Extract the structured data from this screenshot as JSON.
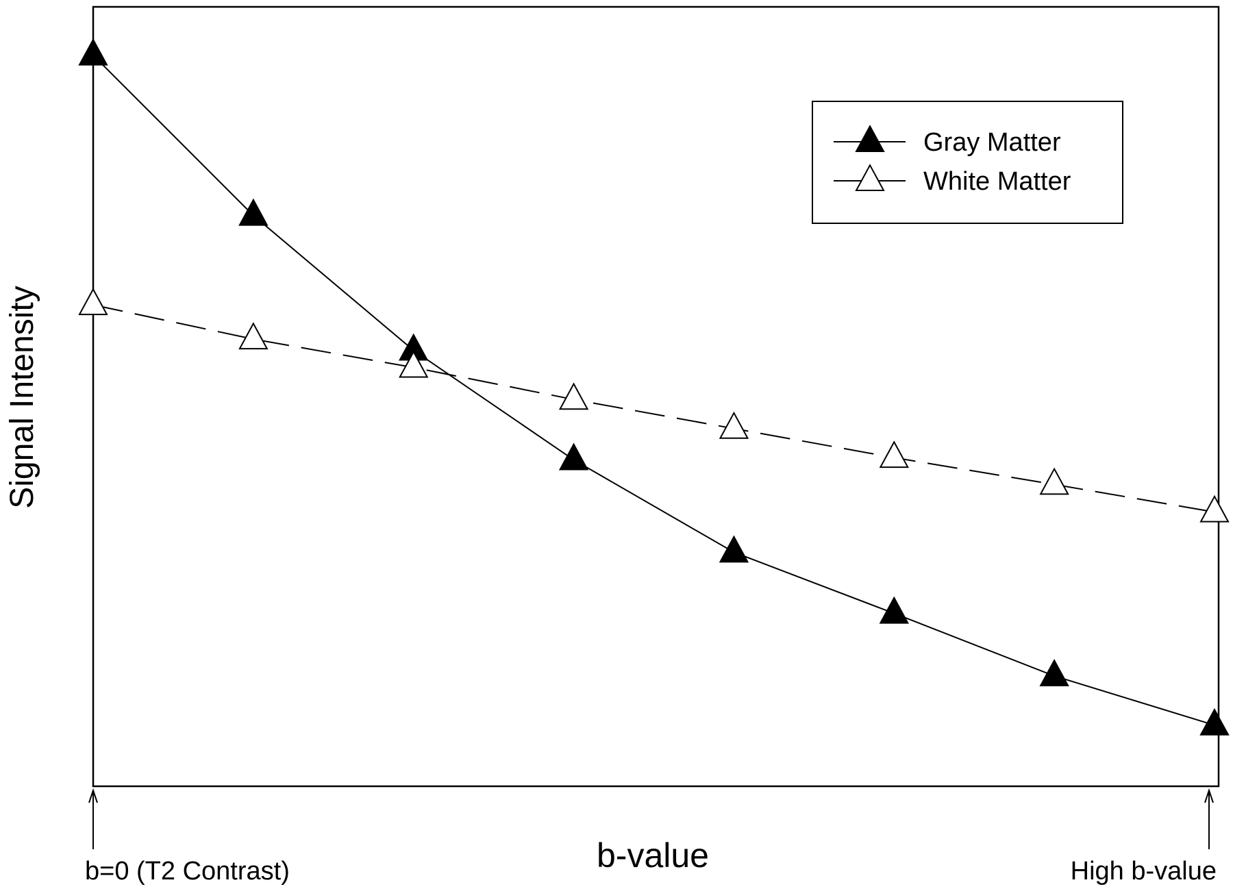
{
  "chart_data": {
    "type": "line",
    "title": "",
    "xlabel": "b-value",
    "ylabel": "Signal Intensity",
    "x_tick_labels": {
      "start": "b=0 (T2 Contrast)",
      "end": "High b-value"
    },
    "x": [
      0,
      1,
      2,
      3,
      4,
      5,
      6,
      7
    ],
    "xlim": [
      0,
      7
    ],
    "ylim": [
      0,
      10
    ],
    "grid": false,
    "legend_position": "top-right",
    "series": [
      {
        "name": "Gray Matter",
        "marker": "filled-triangle",
        "line_style": "solid",
        "color": "#000000",
        "values": [
          9.81,
          7.66,
          5.85,
          4.38,
          3.14,
          2.32,
          1.48,
          0.82
        ]
      },
      {
        "name": "White Matter",
        "marker": "open-triangle",
        "line_style": "dashed",
        "color": "#000000",
        "values": [
          6.46,
          6.0,
          5.62,
          5.19,
          4.8,
          4.41,
          4.05,
          3.68
        ]
      }
    ]
  }
}
